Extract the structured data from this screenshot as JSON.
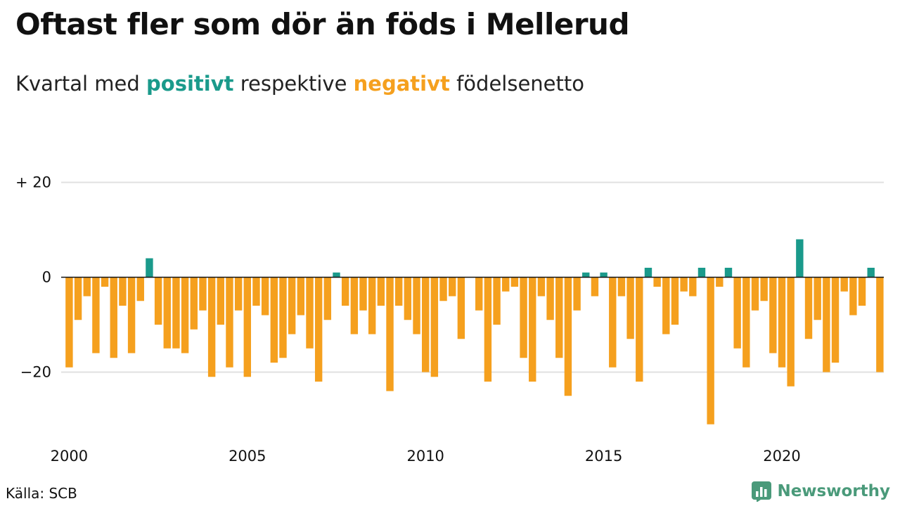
{
  "title": "Oftast fler som dör än föds i Mellerud",
  "subtitle": {
    "prefix": "Kvartal med ",
    "positive_word": "positivt",
    "middle": " respektive ",
    "negative_word": "negativt",
    "suffix": " födelsenetto"
  },
  "source": "Källa: SCB",
  "brand": {
    "name": "Newsworthy",
    "icon": "newsworthy-logo-icon"
  },
  "colors": {
    "positive": "#1a9a8b",
    "negative": "#f5a01e",
    "grid": "#e0e0e0",
    "zero_line": "#111111",
    "brand": "#4a9a7a"
  },
  "chart_data": {
    "type": "bar",
    "start_year": 2000,
    "start_quarter": 1,
    "values": [
      -19,
      -9,
      -4,
      -16,
      -2,
      -17,
      -6,
      -16,
      -5,
      4,
      -10,
      -15,
      -15,
      -16,
      -11,
      -7,
      -21,
      -10,
      -19,
      -7,
      -21,
      -6,
      -8,
      -18,
      -17,
      -12,
      -8,
      -15,
      -22,
      -9,
      1,
      -6,
      -12,
      -7,
      -12,
      -6,
      -24,
      -6,
      -9,
      -12,
      -20,
      -21,
      -5,
      -4,
      -13,
      0,
      -7,
      -22,
      -10,
      -3,
      -2,
      -17,
      -22,
      -4,
      -9,
      -17,
      -25,
      -7,
      1,
      -4,
      1,
      -19,
      -4,
      -13,
      -22,
      2,
      -2,
      -12,
      -10,
      -3,
      -4,
      2,
      -31,
      -2,
      2,
      -15,
      -19,
      -7,
      -5,
      -16,
      -19,
      -23,
      8,
      -13,
      -9,
      -20,
      -18,
      -3,
      -8,
      -6,
      2,
      -20
    ],
    "y_ticks": [
      {
        "value": 20,
        "label": "+ 20"
      },
      {
        "value": 0,
        "label": "0"
      },
      {
        "value": -20,
        "label": "−20"
      }
    ],
    "x_ticks": [
      {
        "year": 2000,
        "label": "2000"
      },
      {
        "year": 2005,
        "label": "2005"
      },
      {
        "year": 2010,
        "label": "2010"
      },
      {
        "year": 2015,
        "label": "2015"
      },
      {
        "year": 2020,
        "label": "2020"
      }
    ],
    "ylim": [
      -32,
      22
    ],
    "grid": true
  }
}
